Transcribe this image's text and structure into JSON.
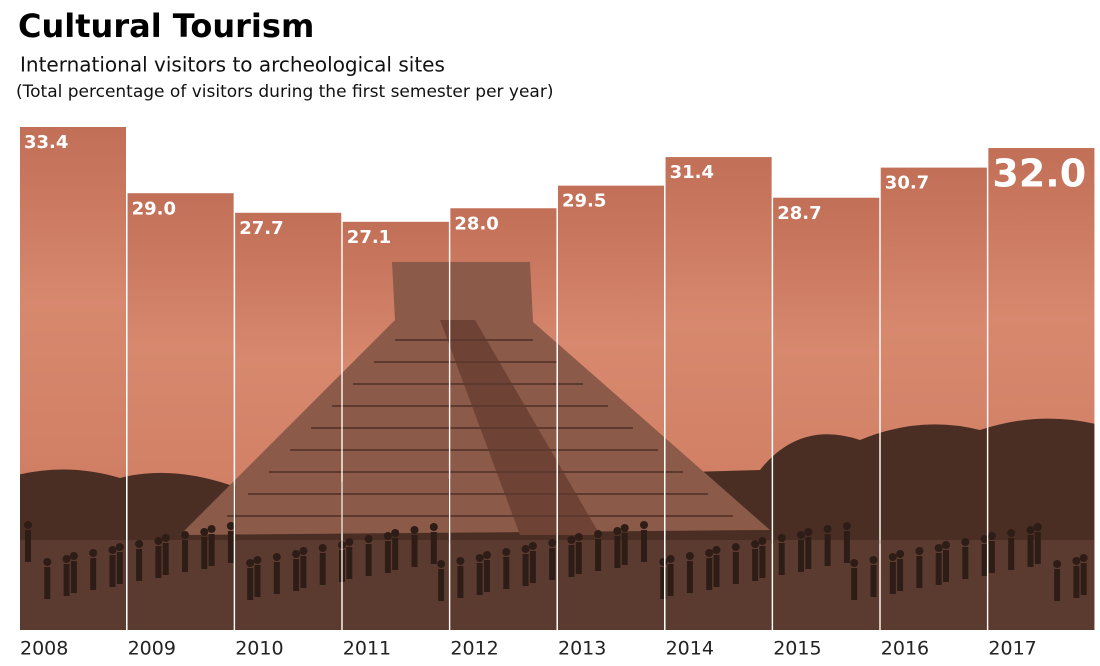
{
  "chart_data": {
    "type": "bar",
    "title": "Cultural Tourism",
    "subtitle": "International visitors to archeological sites",
    "note": "(Total percentage of visitors during the first semester per year)",
    "categories": [
      "2008",
      "2009",
      "2010",
      "2011",
      "2012",
      "2013",
      "2014",
      "2015",
      "2016",
      "2017"
    ],
    "values": [
      33.4,
      29.0,
      27.7,
      27.1,
      28.0,
      29.5,
      31.4,
      28.7,
      30.7,
      32.0
    ],
    "value_labels": [
      "33.4",
      "29.0",
      "27.7",
      "27.1",
      "28.0",
      "29.5",
      "31.4",
      "28.7",
      "30.7",
      "32.0"
    ],
    "color": "#d4846a"
  }
}
